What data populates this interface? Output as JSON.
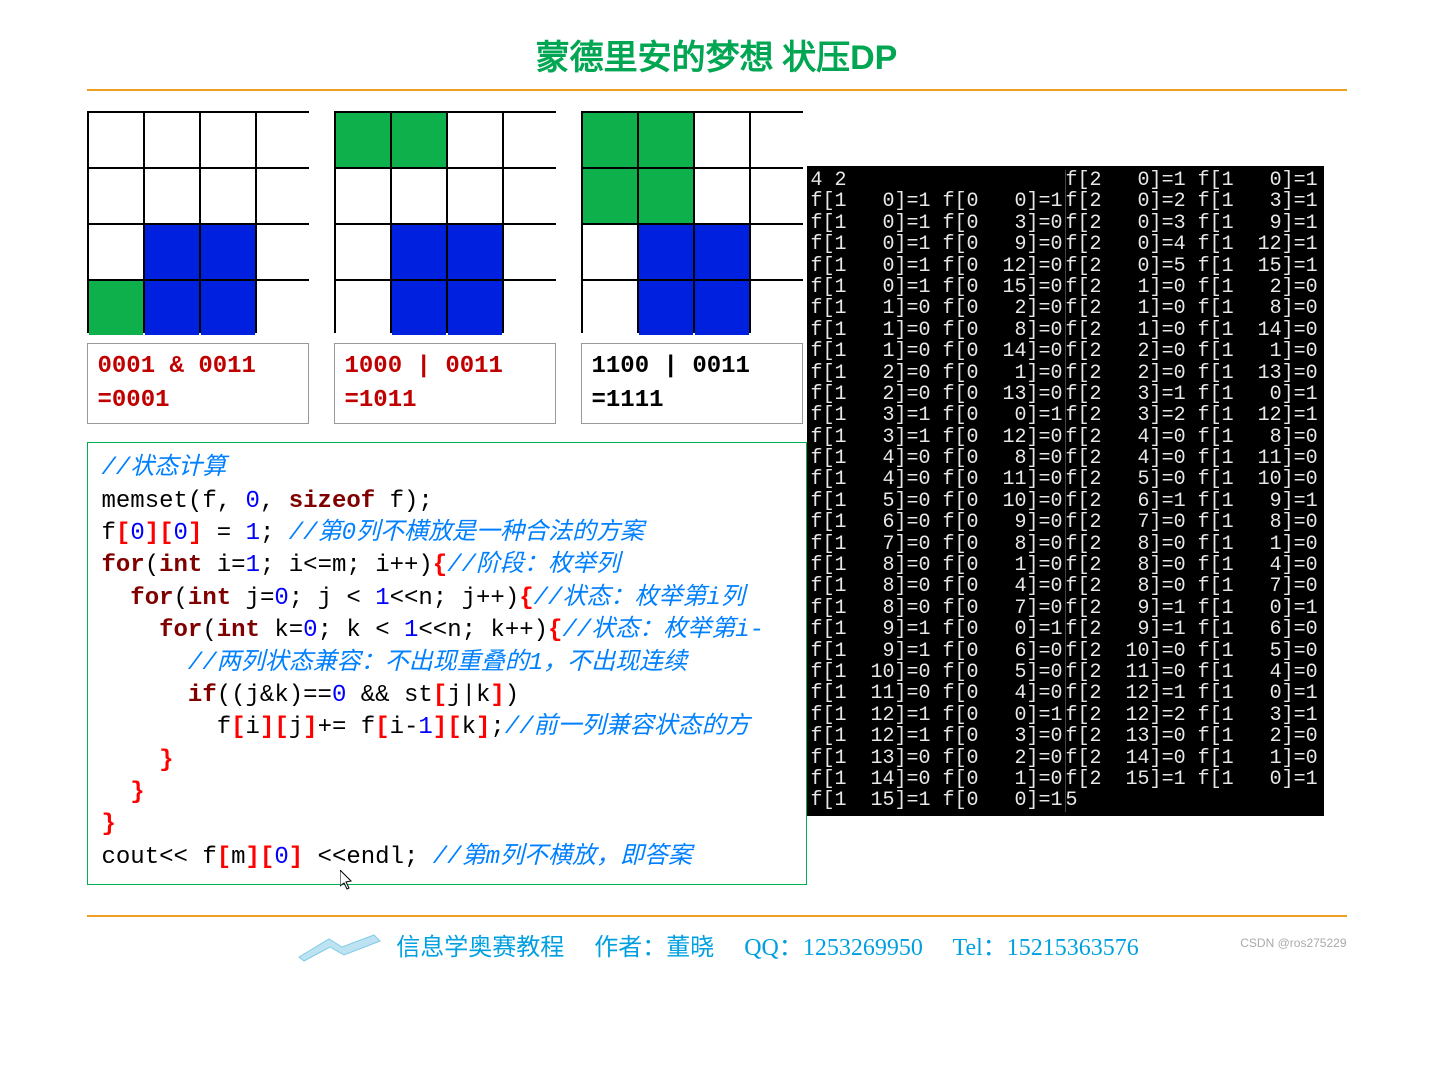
{
  "title": {
    "cn": "蒙德里安的梦想 状压",
    "en": "DP"
  },
  "grids": [
    {
      "cells": [
        [
          "",
          "",
          "",
          ""
        ],
        [
          "",
          "",
          "",
          ""
        ],
        [
          "",
          "b",
          "b",
          ""
        ],
        [
          "g",
          "b",
          "b",
          ""
        ]
      ],
      "label": {
        "l1": "0001 & 0011",
        "l2": "=0001",
        "color": "red"
      }
    },
    {
      "cells": [
        [
          "g",
          "g",
          "",
          ""
        ],
        [
          "",
          "",
          "",
          ""
        ],
        [
          "",
          "b",
          "b",
          ""
        ],
        [
          "",
          "b",
          "b",
          ""
        ]
      ],
      "label": {
        "l1": "1000 | 0011",
        "l2": "=1011",
        "color": "red"
      }
    },
    {
      "cells": [
        [
          "g",
          "g",
          "",
          ""
        ],
        [
          "g",
          "g",
          "",
          ""
        ],
        [
          "",
          "b",
          "b",
          ""
        ],
        [
          "",
          "b",
          "b",
          ""
        ]
      ],
      "label": {
        "l1": "1100 | 0011",
        "l2": "=1111",
        "color": "blk"
      }
    }
  ],
  "code": {
    "c01": "//状态计算",
    "c02a": "memset(f, ",
    "c02b": "0",
    "c02c": ", ",
    "c02d": "sizeof",
    "c02e": " f);",
    "c03a": "f",
    "c03b": "[",
    "c03c": "0",
    "c03d": "][",
    "c03e": "0",
    "c03f": "]",
    "c03g": " = ",
    "c03h": "1",
    "c03i": "; ",
    "c03j": "//第0列不横放是一种合法的方案",
    "c04a": "for",
    "c04b": "(",
    "c04c": "int",
    "c04d": " i=",
    "c04e": "1",
    "c04f": "; i<=m; i++)",
    "c04g": "{",
    "c04h": "//阶段：枚举列",
    "c05a": "  for",
    "c05b": "(",
    "c05c": "int",
    "c05d": " j=",
    "c05e": "0",
    "c05f": "; j < ",
    "c05g": "1",
    "c05h": "<<n; j++)",
    "c05i": "{",
    "c05j": "//状态：枚举第i列",
    "c06a": "    for",
    "c06b": "(",
    "c06c": "int",
    "c06d": " k=",
    "c06e": "0",
    "c06f": "; k < ",
    "c06g": "1",
    "c06h": "<<n; k++)",
    "c06i": "{",
    "c06j": "//状态：枚举第i-",
    "c07": "      //两列状态兼容：不出现重叠的1，不出现连续",
    "c08a": "      if",
    "c08b": "((j&k)==",
    "c08c": "0",
    "c08d": " && st",
    "c08e": "[",
    "c08f": "j|k",
    "c08g": "]",
    "c08h": ")",
    "c09a": "        f",
    "c09b": "[",
    "c09c": "i",
    "c09d": "][",
    "c09e": "j",
    "c09f": "]",
    "c09g": "+= f",
    "c09h": "[",
    "c09i": "i-",
    "c09j": "1",
    "c09k": "][",
    "c09l": "k",
    "c09m": "]",
    "c09n": ";",
    "c09o": "//前一列兼容状态的方",
    "c10": "    }",
    "c11": "  }",
    "c12": "}",
    "c13a": "cout<< f",
    "c13b": "[",
    "c13c": "m",
    "c13d": "][",
    "c13e": "0",
    "c13f": "]",
    "c13g": " <<endl; ",
    "c13h": "//第m列不横放，即答案"
  },
  "console": {
    "left": [
      "4 2",
      "f[1   0]=1 f[0   0]=1",
      "f[1   0]=1 f[0   3]=0",
      "f[1   0]=1 f[0   9]=0",
      "f[1   0]=1 f[0  12]=0",
      "f[1   0]=1 f[0  15]=0",
      "f[1   1]=0 f[0   2]=0",
      "f[1   1]=0 f[0   8]=0",
      "f[1   1]=0 f[0  14]=0",
      "f[1   2]=0 f[0   1]=0",
      "f[1   2]=0 f[0  13]=0",
      "f[1   3]=1 f[0   0]=1",
      "f[1   3]=1 f[0  12]=0",
      "f[1   4]=0 f[0   8]=0",
      "f[1   4]=0 f[0  11]=0",
      "f[1   5]=0 f[0  10]=0",
      "f[1   6]=0 f[0   9]=0",
      "f[1   7]=0 f[0   8]=0",
      "f[1   8]=0 f[0   1]=0",
      "f[1   8]=0 f[0   4]=0",
      "f[1   8]=0 f[0   7]=0",
      "f[1   9]=1 f[0   0]=1",
      "f[1   9]=1 f[0   6]=0",
      "f[1  10]=0 f[0   5]=0",
      "f[1  11]=0 f[0   4]=0",
      "f[1  12]=1 f[0   0]=1",
      "f[1  12]=1 f[0   3]=0",
      "f[1  13]=0 f[0   2]=0",
      "f[1  14]=0 f[0   1]=0",
      "f[1  15]=1 f[0   0]=1"
    ],
    "right": [
      "f[2   0]=1 f[1   0]=1",
      "f[2   0]=2 f[1   3]=1",
      "f[2   0]=3 f[1   9]=1",
      "f[2   0]=4 f[1  12]=1",
      "f[2   0]=5 f[1  15]=1",
      "f[2   1]=0 f[1   2]=0",
      "f[2   1]=0 f[1   8]=0",
      "f[2   1]=0 f[1  14]=0",
      "f[2   2]=0 f[1   1]=0",
      "f[2   2]=0 f[1  13]=0",
      "f[2   3]=1 f[1   0]=1",
      "f[2   3]=2 f[1  12]=1",
      "f[2   4]=0 f[1   8]=0",
      "f[2   4]=0 f[1  11]=0",
      "f[2   5]=0 f[1  10]=0",
      "f[2   6]=1 f[1   9]=1",
      "f[2   7]=0 f[1   8]=0",
      "f[2   8]=0 f[1   1]=0",
      "f[2   8]=0 f[1   4]=0",
      "f[2   8]=0 f[1   7]=0",
      "f[2   9]=1 f[1   0]=1",
      "f[2   9]=1 f[1   6]=0",
      "f[2  10]=0 f[1   5]=0",
      "f[2  11]=0 f[1   4]=0",
      "f[2  12]=1 f[1   0]=1",
      "f[2  12]=2 f[1   3]=1",
      "f[2  13]=0 f[1   2]=0",
      "f[2  14]=0 f[1   1]=0",
      "f[2  15]=1 f[1   0]=1",
      "5"
    ]
  },
  "footer": {
    "org": "信息学奥赛教程",
    "author_label": "作者：",
    "author": "董晓",
    "qq_label": "QQ：",
    "qq": "1253269950",
    "tel_label": "Tel：",
    "tel": "15215363576"
  },
  "watermark": "CSDN @ros275229"
}
